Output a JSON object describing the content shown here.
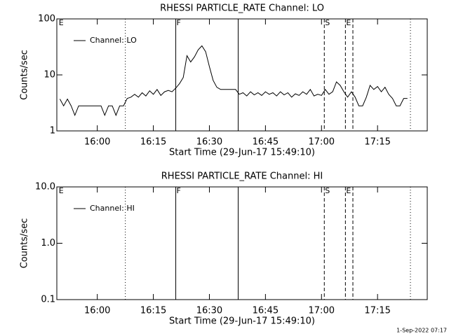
{
  "chart_data": [
    {
      "type": "line",
      "title": "RHESSI PARTICLE_RATE Channel: LO",
      "xlabel": "Start Time (29-Jun-17 15:49:10)",
      "ylabel": "Counts/sec",
      "log_y": true,
      "legend": "upper left",
      "x": [
        950,
        951,
        952,
        953,
        954,
        955,
        956,
        957,
        958,
        959,
        960,
        961,
        962,
        963,
        964,
        965,
        966,
        967,
        968,
        969,
        970,
        971,
        972,
        973,
        974,
        975,
        976,
        977,
        978,
        979,
        980,
        981,
        982,
        983,
        984,
        985,
        986,
        987,
        988,
        989,
        990,
        991,
        992,
        993,
        994,
        995,
        996,
        997,
        998,
        999,
        1000,
        1001,
        1002,
        1003,
        1004,
        1005,
        1006,
        1007,
        1008,
        1009,
        1010,
        1011,
        1012,
        1013,
        1014,
        1015,
        1016,
        1017,
        1018,
        1019,
        1020,
        1021,
        1022,
        1023,
        1024,
        1025,
        1026,
        1027,
        1028,
        1029,
        1030,
        1031,
        1032,
        1033,
        1034,
        1035,
        1036,
        1037,
        1038,
        1039,
        1040,
        1041,
        1042,
        1043
      ],
      "series": [
        {
          "name": "Channel: LO",
          "color": "#000000",
          "values": [
            3.7,
            2.8,
            3.7,
            2.8,
            1.9,
            2.8,
            2.8,
            2.8,
            2.8,
            2.8,
            2.8,
            2.8,
            1.9,
            2.8,
            2.8,
            1.9,
            2.8,
            2.8,
            3.8,
            4,
            4.5,
            4,
            4.8,
            4.2,
            5.2,
            4.5,
            5.5,
            4.3,
            5,
            5.3,
            5,
            5.8,
            7,
            9,
            22,
            17,
            21,
            28,
            33,
            26,
            14,
            8,
            6,
            5.5,
            5.5,
            5.5,
            5.5,
            5.5,
            4.5,
            4.8,
            4.2,
            5,
            4.4,
            4.8,
            4.3,
            5,
            4.5,
            4.8,
            4.2,
            5,
            4.4,
            4.8,
            4,
            4.6,
            4.3,
            5,
            4.5,
            5.5,
            4.2,
            4.5,
            4.3,
            5.5,
            4.5,
            5,
            7.5,
            6.5,
            5,
            4,
            5,
            4,
            2.8,
            2.8,
            4,
            6.5,
            5.5,
            6.2,
            5,
            6,
            4.5,
            3.8,
            2.8,
            2.8,
            3.8,
            3.8
          ]
        }
      ],
      "xlim": [
        949.17,
        1048.3
      ],
      "xticks": [
        {
          "value": 960,
          "label": "16:00"
        },
        {
          "value": 975,
          "label": "16:15"
        },
        {
          "value": 990,
          "label": "16:30"
        },
        {
          "value": 1005,
          "label": "16:45"
        },
        {
          "value": 1020,
          "label": "17:00"
        },
        {
          "value": 1035,
          "label": "17:15"
        }
      ],
      "ylim": [
        1,
        100
      ],
      "yticks": [
        1,
        10,
        100
      ],
      "markers": [
        {
          "x": 949.5,
          "style": "none",
          "label": "E"
        },
        {
          "x": 967.5,
          "style": "dotted"
        },
        {
          "x": 981,
          "style": "solid",
          "label": "F"
        },
        {
          "x": 997.7,
          "style": "solid"
        },
        {
          "x": 1020.75,
          "style": "dashed",
          "label": "S"
        },
        {
          "x": 1026.4,
          "style": "dashed",
          "label": "E"
        },
        {
          "x": 1028.4,
          "style": "dashed"
        },
        {
          "x": 1043.8,
          "style": "dotted"
        }
      ]
    },
    {
      "type": "line",
      "title": "RHESSI PARTICLE_RATE Channel: HI",
      "xlabel": "Start Time (29-Jun-17 15:49:10)",
      "ylabel": "Counts/sec",
      "log_y": true,
      "legend": "upper left",
      "x": [],
      "series": [
        {
          "name": "Channel: HI",
          "color": "#000000",
          "values": []
        }
      ],
      "xlim": [
        949.17,
        1048.3
      ],
      "xticks": [
        {
          "value": 960,
          "label": "16:00"
        },
        {
          "value": 975,
          "label": "16:15"
        },
        {
          "value": 990,
          "label": "16:30"
        },
        {
          "value": 1005,
          "label": "16:45"
        },
        {
          "value": 1020,
          "label": "17:00"
        },
        {
          "value": 1035,
          "label": "17:15"
        }
      ],
      "ylim": [
        0.1,
        10
      ],
      "yticks": [
        0.1,
        {
          "value": 1,
          "label": "1.0"
        },
        {
          "value": 10,
          "label": "10.0"
        }
      ],
      "markers": [
        {
          "x": 949.5,
          "style": "none",
          "label": "E"
        },
        {
          "x": 967.5,
          "style": "dotted"
        },
        {
          "x": 981,
          "style": "solid",
          "label": "F"
        },
        {
          "x": 997.7,
          "style": "solid"
        },
        {
          "x": 1020.75,
          "style": "dashed",
          "label": "S"
        },
        {
          "x": 1026.4,
          "style": "dashed",
          "label": "E"
        },
        {
          "x": 1028.4,
          "style": "dashed"
        },
        {
          "x": 1043.8,
          "style": "dotted"
        }
      ]
    }
  ],
  "footer": "1-Sep-2022 07:17"
}
